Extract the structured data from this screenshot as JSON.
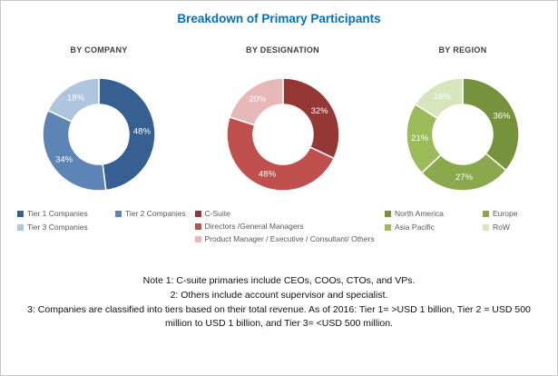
{
  "title": "Breakdown of Primary Participants",
  "title_color": "#0070C0",
  "chart_data": [
    {
      "type": "pie",
      "subtype": "donut",
      "title": "BY COMPANY",
      "labels": [
        "Tier 1 Companies",
        "Tier 2 Companies",
        "Tier 3 Companies"
      ],
      "values": [
        48,
        34,
        18
      ],
      "value_labels": [
        "48%",
        "34%",
        "18%"
      ],
      "colors": [
        "#376092",
        "#5C84B4",
        "#AFC4DD"
      ],
      "legend_position": "bottom",
      "legend_columns": 2
    },
    {
      "type": "pie",
      "subtype": "donut",
      "title": "BY DESIGNATION",
      "labels": [
        "C-Suite",
        "Directors /General Managers",
        "Product Manager / Executive / Consultant/ Others"
      ],
      "values": [
        32,
        48,
        20
      ],
      "value_labels": [
        "32%",
        "48%",
        "20%"
      ],
      "colors": [
        "#953735",
        "#C0504D",
        "#E6B9B8"
      ],
      "legend_position": "bottom",
      "legend_columns": 1
    },
    {
      "type": "pie",
      "subtype": "donut",
      "title": "BY REGION",
      "labels": [
        "North America",
        "Europe",
        "Asia Pacific",
        "RoW"
      ],
      "values": [
        36,
        27,
        21,
        16
      ],
      "value_labels": [
        "36%",
        "27%",
        "21%",
        "16%"
      ],
      "colors": [
        "#76923C",
        "#8CA84D",
        "#9BBB59",
        "#D7E4BC"
      ],
      "legend_position": "bottom",
      "legend_columns": 2
    }
  ],
  "notes": {
    "line1": "Note 1: C-suite primaries include CEOs, COOs, CTOs, and VPs.",
    "line2": "2: Others include account supervisor and specialist.",
    "line3": "3: Companies are classified into tiers based on their total revenue. As of 2016: Tier 1= >USD 1 billion, Tier 2 = USD 500 million to USD 1 billion, and Tier 3= <USD 500 million."
  }
}
